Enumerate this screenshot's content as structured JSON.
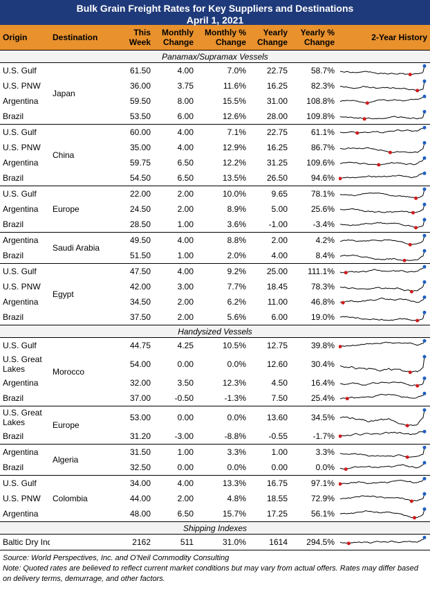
{
  "title": {
    "line1": "Bulk Grain Freight Rates for Key Suppliers and Destinations",
    "line2": "April 1, 2021"
  },
  "headers": {
    "origin": "Origin",
    "destination": "Destination",
    "this_week": "This Week",
    "monthly_change": "Monthly Change",
    "monthly_pct": "Monthly % Change",
    "yearly_change": "Yearly Change",
    "yearly_pct": "Yearly % Change",
    "history": "2-Year History"
  },
  "sections": [
    {
      "label": "Panamax/Supramax Vessels",
      "groups": [
        {
          "destination": "Japan",
          "rows": [
            {
              "origin": "U.S. Gulf",
              "this_week": "61.50",
              "monthly_change": "4.00",
              "monthly_pct": "7.0%",
              "yearly_change": "22.75",
              "yearly_pct": "58.7%"
            },
            {
              "origin": "U.S. PNW",
              "this_week": "36.00",
              "monthly_change": "3.75",
              "monthly_pct": "11.6%",
              "yearly_change": "16.25",
              "yearly_pct": "82.3%"
            },
            {
              "origin": "Argentina",
              "this_week": "59.50",
              "monthly_change": "8.00",
              "monthly_pct": "15.5%",
              "yearly_change": "31.00",
              "yearly_pct": "108.8%"
            },
            {
              "origin": "Brazil",
              "this_week": "53.50",
              "monthly_change": "6.00",
              "monthly_pct": "12.6%",
              "yearly_change": "28.00",
              "yearly_pct": "109.8%"
            }
          ]
        },
        {
          "destination": "China",
          "rows": [
            {
              "origin": "U.S. Gulf",
              "this_week": "60.00",
              "monthly_change": "4.00",
              "monthly_pct": "7.1%",
              "yearly_change": "22.75",
              "yearly_pct": "61.1%"
            },
            {
              "origin": "U.S. PNW",
              "this_week": "35.00",
              "monthly_change": "4.00",
              "monthly_pct": "12.9%",
              "yearly_change": "16.25",
              "yearly_pct": "86.7%"
            },
            {
              "origin": "Argentina",
              "this_week": "59.75",
              "monthly_change": "6.50",
              "monthly_pct": "12.2%",
              "yearly_change": "31.25",
              "yearly_pct": "109.6%"
            },
            {
              "origin": "Brazil",
              "this_week": "54.50",
              "monthly_change": "6.50",
              "monthly_pct": "13.5%",
              "yearly_change": "26.50",
              "yearly_pct": "94.6%"
            }
          ]
        },
        {
          "destination": "Europe",
          "rows": [
            {
              "origin": "U.S. Gulf",
              "this_week": "22.00",
              "monthly_change": "2.00",
              "monthly_pct": "10.0%",
              "yearly_change": "9.65",
              "yearly_pct": "78.1%"
            },
            {
              "origin": "Argentina",
              "this_week": "24.50",
              "monthly_change": "2.00",
              "monthly_pct": "8.9%",
              "yearly_change": "5.00",
              "yearly_pct": "25.6%"
            },
            {
              "origin": "Brazil",
              "this_week": "28.50",
              "monthly_change": "1.00",
              "monthly_pct": "3.6%",
              "yearly_change": "-1.00",
              "yearly_pct": "-3.4%"
            }
          ]
        },
        {
          "destination": "Saudi Arabia",
          "rows": [
            {
              "origin": "Argentina",
              "this_week": "49.50",
              "monthly_change": "4.00",
              "monthly_pct": "8.8%",
              "yearly_change": "2.00",
              "yearly_pct": "4.2%"
            },
            {
              "origin": "Brazil",
              "this_week": "51.50",
              "monthly_change": "1.00",
              "monthly_pct": "2.0%",
              "yearly_change": "4.00",
              "yearly_pct": "8.4%"
            }
          ]
        },
        {
          "destination": "Egypt",
          "rows": [
            {
              "origin": "U.S. Gulf",
              "this_week": "47.50",
              "monthly_change": "4.00",
              "monthly_pct": "9.2%",
              "yearly_change": "25.00",
              "yearly_pct": "111.1%"
            },
            {
              "origin": "U.S. PNW",
              "this_week": "42.00",
              "monthly_change": "3.00",
              "monthly_pct": "7.7%",
              "yearly_change": "18.45",
              "yearly_pct": "78.3%"
            },
            {
              "origin": "Argentina",
              "this_week": "34.50",
              "monthly_change": "2.00",
              "monthly_pct": "6.2%",
              "yearly_change": "11.00",
              "yearly_pct": "46.8%"
            },
            {
              "origin": "Brazil",
              "this_week": "37.50",
              "monthly_change": "2.00",
              "monthly_pct": "5.6%",
              "yearly_change": "6.00",
              "yearly_pct": "19.0%"
            }
          ]
        }
      ]
    },
    {
      "label": "Handysized Vessels",
      "groups": [
        {
          "destination": "Morocco",
          "rows": [
            {
              "origin": "U.S. Gulf",
              "this_week": "44.75",
              "monthly_change": "4.25",
              "monthly_pct": "10.5%",
              "yearly_change": "12.75",
              "yearly_pct": "39.8%"
            },
            {
              "origin": "U.S. Great Lakes",
              "this_week": "54.00",
              "monthly_change": "0.00",
              "monthly_pct": "0.0%",
              "yearly_change": "12.60",
              "yearly_pct": "30.4%",
              "tall": true
            },
            {
              "origin": "Argentina",
              "this_week": "32.00",
              "monthly_change": "3.50",
              "monthly_pct": "12.3%",
              "yearly_change": "4.50",
              "yearly_pct": "16.4%"
            },
            {
              "origin": "Brazil",
              "this_week": "37.00",
              "monthly_change": "-0.50",
              "monthly_pct": "-1.3%",
              "yearly_change": "7.50",
              "yearly_pct": "25.4%"
            }
          ]
        },
        {
          "destination": "Europe",
          "rows": [
            {
              "origin": "U.S. Great Lakes",
              "this_week": "53.00",
              "monthly_change": "0.00",
              "monthly_pct": "0.0%",
              "yearly_change": "13.60",
              "yearly_pct": "34.5%",
              "tall": true
            },
            {
              "origin": "Brazil",
              "this_week": "31.20",
              "monthly_change": "-3.00",
              "monthly_pct": "-8.8%",
              "yearly_change": "-0.55",
              "yearly_pct": "-1.7%"
            }
          ]
        },
        {
          "destination": "Algeria",
          "rows": [
            {
              "origin": "Argentina",
              "this_week": "31.50",
              "monthly_change": "1.00",
              "monthly_pct": "3.3%",
              "yearly_change": "1.00",
              "yearly_pct": "3.3%"
            },
            {
              "origin": "Brazil",
              "this_week": "32.50",
              "monthly_change": "0.00",
              "monthly_pct": "0.0%",
              "yearly_change": "0.00",
              "yearly_pct": "0.0%"
            }
          ]
        },
        {
          "destination": "Colombia",
          "rows": [
            {
              "origin": "U.S. Gulf",
              "this_week": "34.00",
              "monthly_change": "4.00",
              "monthly_pct": "13.3%",
              "yearly_change": "16.75",
              "yearly_pct": "97.1%"
            },
            {
              "origin": "U.S. PNW",
              "this_week": "44.00",
              "monthly_change": "2.00",
              "monthly_pct": "4.8%",
              "yearly_change": "18.55",
              "yearly_pct": "72.9%"
            },
            {
              "origin": "Argentina",
              "this_week": "48.00",
              "monthly_change": "6.50",
              "monthly_pct": "15.7%",
              "yearly_change": "17.25",
              "yearly_pct": "56.1%"
            }
          ]
        }
      ]
    },
    {
      "label": "Shipping Indexes",
      "groups": [
        {
          "destination": "",
          "rows": [
            {
              "origin": "Baltic Dry Index",
              "this_week": "2162",
              "monthly_change": "511",
              "monthly_pct": "31.0%",
              "yearly_change": "1614",
              "yearly_pct": "294.5%"
            }
          ]
        }
      ]
    }
  ],
  "footer": {
    "source": "Source: World Perspectives, Inc. and O'Neil Commodity Consulting",
    "note": "Note: Quoted rates are believed to reflect current market conditions but may vary from actual offers. Rates may differ based on delivery terms, demurrage, and other factors."
  },
  "colors": {
    "title_bg": "#1f3a7a",
    "header_bg": "#e8912d",
    "sparkline": "#000000",
    "high_marker": "#1f5fbf",
    "low_marker": "#d01c1c"
  }
}
